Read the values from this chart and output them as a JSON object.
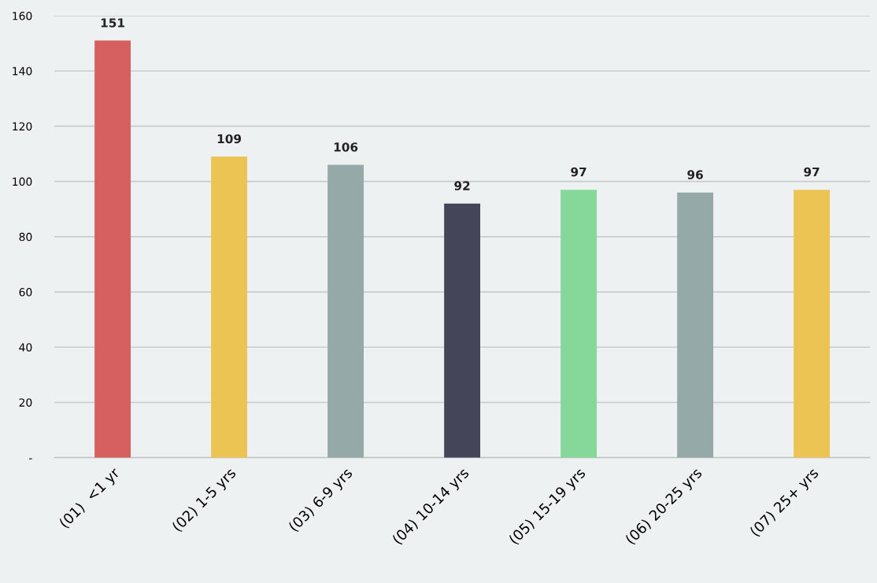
{
  "chart_data": {
    "type": "bar",
    "categories": [
      "(01)  <1 yr",
      "(02) 1-5 yrs",
      "(03) 6-9 yrs",
      "(04) 10-14 yrs",
      "(05) 15-19 yrs",
      "(06) 20-25 yrs",
      "(07) 25+ yrs"
    ],
    "values": [
      151,
      109,
      106,
      92,
      97,
      96,
      97
    ],
    "colors": [
      "#d65f5f",
      "#ecc453",
      "#95aaa8",
      "#454559",
      "#85d89a",
      "#95aaa8",
      "#ecc453"
    ],
    "ylim": [
      0,
      160
    ],
    "yticks": [
      {
        "value": 0,
        "label": "-"
      },
      20,
      40,
      60,
      80,
      100,
      120,
      140,
      160
    ],
    "grid": "y",
    "data_labels": true
  }
}
